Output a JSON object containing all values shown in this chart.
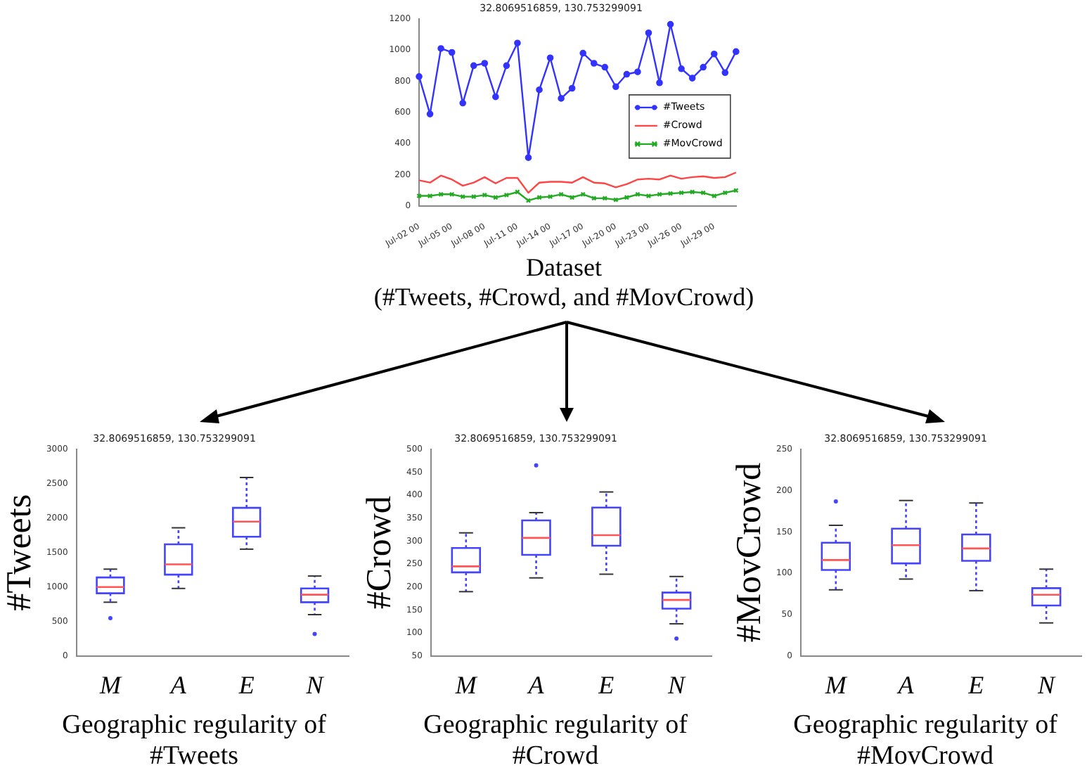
{
  "chart_data": [
    {
      "type": "line",
      "title": "32.8069516859, 130.753299091",
      "xlabel": "Dataset\n(#Tweets, #Crowd, and #MovCrowd)",
      "categories": [
        "Jul-02 00",
        null,
        null,
        "Jul-05 00",
        null,
        null,
        "Jul-08 00",
        null,
        null,
        "Jul-11 00",
        null,
        null,
        "Jul-14 00",
        null,
        null,
        "Jul-17 00",
        null,
        null,
        "Jul-20 00",
        null,
        null,
        "Jul-23 00",
        null,
        null,
        "Jul-26 00",
        null,
        null,
        "Jul-29 00",
        null,
        null
      ],
      "ylim": [
        0,
        1200
      ],
      "yticks": [
        0,
        200,
        400,
        600,
        800,
        1000,
        1200
      ],
      "legend": "right",
      "series": [
        {
          "name": "#Tweets",
          "color": "#3333ff",
          "marker": "circle",
          "values": [
            830,
            590,
            1010,
            985,
            660,
            900,
            915,
            700,
            900,
            1045,
            310,
            745,
            950,
            690,
            755,
            980,
            915,
            890,
            765,
            845,
            860,
            1110,
            790,
            1165,
            880,
            820,
            890,
            975,
            855,
            990
          ]
        },
        {
          "name": "#Crowd",
          "color": "#ff4444",
          "marker": "none",
          "values": [
            165,
            150,
            195,
            170,
            130,
            150,
            185,
            145,
            180,
            180,
            85,
            150,
            155,
            155,
            150,
            185,
            150,
            145,
            120,
            140,
            170,
            175,
            170,
            195,
            175,
            185,
            190,
            180,
            185,
            215
          ]
        },
        {
          "name": "#MovCrowd",
          "color": "#22aa22",
          "marker": "cross",
          "values": [
            65,
            65,
            75,
            75,
            60,
            60,
            70,
            55,
            70,
            90,
            35,
            55,
            60,
            75,
            55,
            75,
            50,
            50,
            40,
            55,
            75,
            65,
            75,
            80,
            85,
            90,
            85,
            65,
            85,
            100
          ]
        }
      ]
    },
    {
      "type": "box",
      "title": "32.8069516859, 130.753299091",
      "xlabel": "Geographic regularity of #Tweets",
      "ylabel": "#Tweets",
      "categories": [
        "M",
        "A",
        "E",
        "N"
      ],
      "ylim": [
        0,
        3000
      ],
      "yticks": [
        0,
        500,
        1000,
        1500,
        2000,
        2500,
        3000
      ],
      "series": [
        {
          "color": "#4444ff",
          "boxes": [
            {
              "low": 780,
              "q1": 910,
              "median": 1000,
              "q3": 1140,
              "high": 1260,
              "outliers": [
                550
              ]
            },
            {
              "low": 980,
              "q1": 1180,
              "median": 1330,
              "q3": 1620,
              "high": 1860
            },
            {
              "low": 1550,
              "q1": 1730,
              "median": 1950,
              "q3": 2150,
              "high": 2590
            },
            {
              "low": 600,
              "q1": 780,
              "median": 890,
              "q3": 980,
              "high": 1160,
              "outliers": [
                320
              ]
            }
          ]
        }
      ]
    },
    {
      "type": "box",
      "title": "32.8069516859, 130.753299091",
      "xlabel": "Geographic regularity of #Crowd",
      "ylabel": "#Crowd",
      "categories": [
        "M",
        "A",
        "E",
        "N"
      ],
      "ylim": [
        50,
        500
      ],
      "yticks": [
        50,
        100,
        150,
        200,
        250,
        300,
        350,
        400,
        450,
        500
      ],
      "series": [
        {
          "color": "#4444ff",
          "boxes": [
            {
              "low": 190,
              "q1": 232,
              "median": 245,
              "q3": 285,
              "high": 318
            },
            {
              "low": 220,
              "q1": 270,
              "median": 307,
              "q3": 345,
              "high": 362,
              "outliers": [
                465
              ]
            },
            {
              "low": 228,
              "q1": 290,
              "median": 313,
              "q3": 373,
              "high": 407
            },
            {
              "low": 120,
              "q1": 153,
              "median": 172,
              "q3": 188,
              "high": 223,
              "outliers": [
                88
              ]
            }
          ]
        }
      ]
    },
    {
      "type": "box",
      "title": "32.8069516859, 130.753299091",
      "xlabel": "Geographic regularity of #MovCrowd",
      "ylabel": "#MovCrowd",
      "categories": [
        "M",
        "A",
        "E",
        "N"
      ],
      "ylim": [
        0,
        250
      ],
      "yticks": [
        0,
        50,
        100,
        150,
        200,
        250
      ],
      "series": [
        {
          "color": "#4444ff",
          "boxes": [
            {
              "low": 80,
              "q1": 104,
              "median": 116,
              "q3": 137,
              "high": 158,
              "outliers": [
                187
              ]
            },
            {
              "low": 93,
              "q1": 112,
              "median": 134,
              "q3": 154,
              "high": 188
            },
            {
              "low": 79,
              "q1": 115,
              "median": 130,
              "q3": 147,
              "high": 185
            },
            {
              "low": 40,
              "q1": 61,
              "median": 74,
              "q3": 82,
              "high": 105
            }
          ]
        }
      ]
    }
  ]
}
